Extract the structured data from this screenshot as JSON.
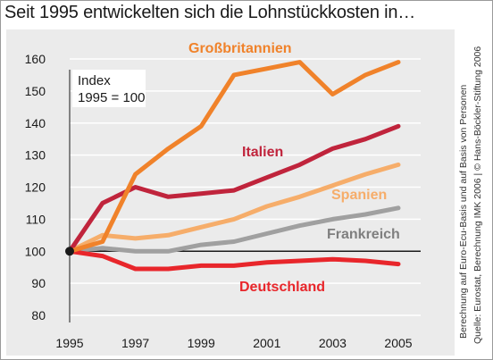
{
  "title": "Seit 1995 entwickelten sich die Lohnstückkosten in…",
  "source_notes": [
    "Berechnung auf Euro-Ecu-Basis und auf Basis von Personen",
    "Quelle: Eurostat, Berechnung IMK 2006 | © Hans-Böckler-Stiftung 2006"
  ],
  "index_box": {
    "line1": "Index",
    "line2": "1995 = 100"
  },
  "chart_data": {
    "type": "line",
    "title": "Seit 1995 entwickelten sich die Lohnstückkosten in…",
    "xlabel": "",
    "ylabel": "",
    "x": [
      1995,
      1996,
      1997,
      1998,
      1999,
      2000,
      2001,
      2002,
      2003,
      2004,
      2005
    ],
    "x_ticks": [
      1995,
      1997,
      1999,
      2001,
      2003,
      2005
    ],
    "y_ticks": [
      80,
      90,
      100,
      110,
      120,
      130,
      140,
      150,
      160
    ],
    "xlim": [
      1995,
      2005
    ],
    "ylim": [
      80,
      160
    ],
    "baseline": 100,
    "grid": "horizontal",
    "legend": "direct labels",
    "series": [
      {
        "name": "Großbritannien",
        "color": "#f0822a",
        "values": [
          100,
          103,
          124,
          132,
          139,
          155,
          157,
          159,
          149,
          155,
          159
        ]
      },
      {
        "name": "Italien",
        "color": "#c0243c",
        "values": [
          100,
          115,
          120,
          117,
          118,
          119,
          123,
          127,
          132,
          135,
          139
        ]
      },
      {
        "name": "Spanien",
        "color": "#f6ad6a",
        "values": [
          100,
          105,
          104,
          105,
          107.5,
          110,
          114,
          117,
          120.5,
          124,
          127
        ]
      },
      {
        "name": "Frankreich",
        "color": "#a0a0a0",
        "values": [
          100,
          101,
          100,
          100,
          102,
          103,
          105.5,
          108,
          110,
          111.5,
          113.5
        ]
      },
      {
        "name": "Deutschland",
        "color": "#e8262b",
        "values": [
          100,
          98.5,
          94.5,
          94.5,
          95.5,
          95.5,
          96.5,
          97,
          97.5,
          97,
          96
        ]
      }
    ]
  }
}
